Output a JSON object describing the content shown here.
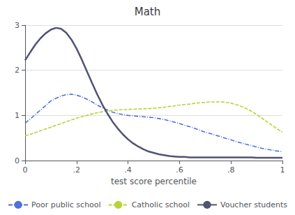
{
  "chart_data": {
    "type": "line",
    "title": "Math",
    "xlabel": "test score percentile",
    "xlim": [
      0,
      1
    ],
    "ylim": [
      0,
      3
    ],
    "xticks": [
      0,
      {
        "value": 0.2,
        "label": ".2"
      },
      {
        "value": 0.4,
        "label": ".4"
      },
      {
        "value": 0.6,
        "label": ".6"
      },
      {
        "value": 0.8,
        "label": ".8"
      },
      1
    ],
    "yticks": [
      0,
      1,
      2,
      3
    ],
    "grid": true,
    "legend": "bottom",
    "x": [
      0.0,
      0.02,
      0.04,
      0.06,
      0.08,
      0.1,
      0.12,
      0.14,
      0.16,
      0.18,
      0.2,
      0.22,
      0.24,
      0.26,
      0.28,
      0.3,
      0.32,
      0.34,
      0.36,
      0.38,
      0.4,
      0.42,
      0.44,
      0.46,
      0.48,
      0.5,
      0.52,
      0.54,
      0.56,
      0.58,
      0.6,
      0.62,
      0.64,
      0.66,
      0.68,
      0.7,
      0.72,
      0.74,
      0.76,
      0.78,
      0.8,
      0.82,
      0.84,
      0.86,
      0.88,
      0.9,
      0.92,
      0.94,
      0.96,
      0.98,
      1.0
    ],
    "series": [
      {
        "name": "Poor public school",
        "line_style": "dashdot",
        "values": [
          0.83,
          0.92,
          1.02,
          1.12,
          1.22,
          1.32,
          1.38,
          1.43,
          1.46,
          1.47,
          1.45,
          1.41,
          1.36,
          1.3,
          1.23,
          1.17,
          1.12,
          1.07,
          1.04,
          1.02,
          1.0,
          0.99,
          0.98,
          0.97,
          0.96,
          0.95,
          0.93,
          0.91,
          0.88,
          0.85,
          0.82,
          0.78,
          0.75,
          0.71,
          0.67,
          0.63,
          0.6,
          0.56,
          0.53,
          0.49,
          0.46,
          0.42,
          0.39,
          0.36,
          0.33,
          0.3,
          0.27,
          0.25,
          0.23,
          0.21,
          0.2
        ]
      },
      {
        "name": "Catholic school",
        "line_style": "dashed",
        "values": [
          0.55,
          0.58,
          0.62,
          0.66,
          0.7,
          0.74,
          0.78,
          0.82,
          0.86,
          0.9,
          0.94,
          0.97,
          1.0,
          1.03,
          1.06,
          1.08,
          1.1,
          1.11,
          1.12,
          1.13,
          1.13,
          1.14,
          1.14,
          1.15,
          1.15,
          1.16,
          1.17,
          1.18,
          1.2,
          1.21,
          1.23,
          1.24,
          1.25,
          1.27,
          1.28,
          1.29,
          1.3,
          1.3,
          1.3,
          1.29,
          1.27,
          1.24,
          1.2,
          1.15,
          1.09,
          1.02,
          0.94,
          0.86,
          0.78,
          0.7,
          0.63
        ]
      },
      {
        "name": "Voucher students",
        "line_style": "solid",
        "values": [
          2.22,
          2.4,
          2.57,
          2.71,
          2.82,
          2.9,
          2.94,
          2.92,
          2.83,
          2.68,
          2.48,
          2.24,
          1.98,
          1.72,
          1.47,
          1.24,
          1.04,
          0.86,
          0.71,
          0.58,
          0.47,
          0.38,
          0.31,
          0.25,
          0.2,
          0.17,
          0.14,
          0.12,
          0.1,
          0.09,
          0.08,
          0.08,
          0.07,
          0.07,
          0.07,
          0.07,
          0.07,
          0.07,
          0.07,
          0.07,
          0.07,
          0.07,
          0.07,
          0.07,
          0.07,
          0.06,
          0.06,
          0.06,
          0.06,
          0.06,
          0.06
        ]
      }
    ]
  }
}
